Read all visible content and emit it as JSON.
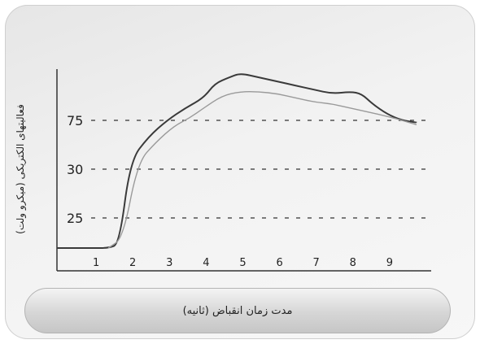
{
  "chart_data": {
    "type": "line",
    "ylabel": "فعالیتهای الکتریکی (میکرو ولت)",
    "xlabel": "مدت زمان انقباض (ثانیه)",
    "x_ticks": [
      "1",
      "2",
      "3",
      "4",
      "5",
      "6",
      "7",
      "8",
      "9"
    ],
    "y_ticks": [
      {
        "label": "75",
        "value": 75
      },
      {
        "label": "30",
        "value": 30
      },
      {
        "label": "25",
        "value": 25
      }
    ],
    "series": [
      {
        "color": "#3a3a3a",
        "points": [
          [
            0,
            10
          ],
          [
            1,
            10
          ],
          [
            1.4,
            10
          ],
          [
            1.7,
            12
          ],
          [
            2.0,
            38
          ],
          [
            2.5,
            60
          ],
          [
            3.0,
            75
          ],
          [
            3.5,
            81
          ],
          [
            4.0,
            86
          ],
          [
            4.3,
            93
          ],
          [
            4.7,
            96
          ],
          [
            5.0,
            98
          ],
          [
            5.5,
            96
          ],
          [
            6.0,
            94
          ],
          [
            6.5,
            92
          ],
          [
            7.0,
            90
          ],
          [
            7.5,
            88
          ],
          [
            8.0,
            89
          ],
          [
            8.3,
            88
          ],
          [
            8.6,
            83
          ],
          [
            9.0,
            78
          ],
          [
            9.4,
            75
          ],
          [
            9.8,
            73
          ]
        ]
      },
      {
        "color": "#9a9a9a",
        "points": [
          [
            1.4,
            10
          ],
          [
            1.8,
            15
          ],
          [
            2.2,
            36
          ],
          [
            2.7,
            55
          ],
          [
            3.2,
            70
          ],
          [
            3.6,
            76
          ],
          [
            4.0,
            81
          ],
          [
            4.5,
            87
          ],
          [
            5.0,
            89
          ],
          [
            5.5,
            89
          ],
          [
            6.0,
            88
          ],
          [
            6.5,
            86
          ],
          [
            7.0,
            84
          ],
          [
            7.5,
            83
          ],
          [
            8.0,
            81
          ],
          [
            8.5,
            79
          ],
          [
            9.0,
            77
          ],
          [
            9.5,
            74
          ],
          [
            9.8,
            71
          ]
        ]
      }
    ]
  }
}
